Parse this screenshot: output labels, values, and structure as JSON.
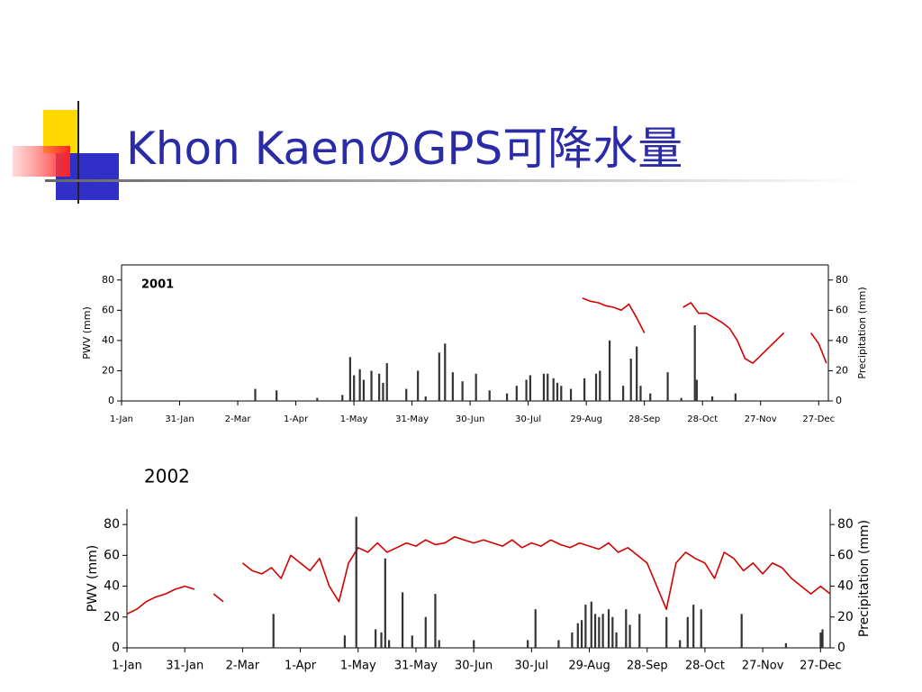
{
  "title": "Khon KaenのGPS可降水量",
  "chart_data": [
    {
      "type": "line",
      "title": "2001",
      "y_label": "PWV (mm)",
      "y2_label": "Precipitation (mm)",
      "xlim": [
        1,
        366
      ],
      "ylim": [
        0,
        90
      ],
      "y2lim": [
        0,
        90
      ],
      "xticks": [
        {
          "value": 1,
          "label": "1-Jan"
        },
        {
          "value": 31,
          "label": "31-Jan"
        },
        {
          "value": 61,
          "label": "2-Mar"
        },
        {
          "value": 91,
          "label": "1-Apr"
        },
        {
          "value": 121,
          "label": "1-May"
        },
        {
          "value": 151,
          "label": "31-May"
        },
        {
          "value": 181,
          "label": "30-Jun"
        },
        {
          "value": 211,
          "label": "30-Jul"
        },
        {
          "value": 241,
          "label": "29-Aug"
        },
        {
          "value": 271,
          "label": "28-Sep"
        },
        {
          "value": 301,
          "label": "28-Oct"
        },
        {
          "value": 331,
          "label": "27-Nov"
        },
        {
          "value": 361,
          "label": "27-Dec"
        }
      ],
      "yticks": [
        0,
        20,
        40,
        60,
        80
      ],
      "y2ticks": [
        0,
        20,
        40,
        60,
        80
      ],
      "series": [
        {
          "type": "line",
          "color": "#d40000",
          "x": [
            239,
            243,
            247,
            251,
            255,
            259,
            263,
            267,
            271,
            275,
            291,
            295,
            299,
            303,
            307,
            311,
            315,
            319,
            323,
            327,
            331,
            335,
            339,
            343,
            347,
            357,
            361,
            365
          ],
          "values": [
            68,
            66,
            65,
            63,
            62,
            60,
            64,
            55,
            45,
            null,
            62,
            65,
            58,
            58,
            55,
            52,
            48,
            40,
            28,
            25,
            30,
            35,
            40,
            45,
            null,
            45,
            38,
            25
          ]
        },
        {
          "type": "bar",
          "axis": "y2",
          "color": "#333333",
          "x": [
            70,
            81,
            102,
            115,
            119,
            121,
            124,
            126,
            130,
            134,
            136,
            138,
            148,
            154,
            158,
            165,
            168,
            172,
            177,
            184,
            191,
            200,
            205,
            210,
            212,
            219,
            221,
            224,
            226,
            228,
            233,
            240,
            246,
            248,
            253,
            260,
            264,
            267,
            269,
            274,
            283,
            290,
            297,
            298,
            306,
            318
          ],
          "values": [
            8,
            7,
            2,
            4,
            29,
            17,
            21,
            14,
            20,
            18,
            12,
            25,
            8,
            20,
            3,
            32,
            38,
            19,
            13,
            18,
            7,
            5,
            10,
            14,
            17,
            18,
            18,
            15,
            12,
            10,
            8,
            15,
            18,
            20,
            40,
            10,
            28,
            36,
            10,
            5,
            19,
            2,
            50,
            14,
            3,
            5
          ]
        }
      ]
    },
    {
      "type": "line",
      "title": "2002",
      "y_label": "PWV (mm)",
      "y2_label": "Precipitation (mm)",
      "xlim": [
        1,
        366
      ],
      "ylim": [
        0,
        90
      ],
      "y2lim": [
        0,
        90
      ],
      "xticks": [
        {
          "value": 1,
          "label": "1-Jan"
        },
        {
          "value": 31,
          "label": "31-Jan"
        },
        {
          "value": 61,
          "label": "2-Mar"
        },
        {
          "value": 91,
          "label": "1-Apr"
        },
        {
          "value": 121,
          "label": "1-May"
        },
        {
          "value": 151,
          "label": "31-May"
        },
        {
          "value": 181,
          "label": "30-Jun"
        },
        {
          "value": 211,
          "label": "30-Jul"
        },
        {
          "value": 241,
          "label": "29-Aug"
        },
        {
          "value": 271,
          "label": "28-Sep"
        },
        {
          "value": 301,
          "label": "28-Oct"
        },
        {
          "value": 331,
          "label": "27-Nov"
        },
        {
          "value": 361,
          "label": "27-Dec"
        }
      ],
      "yticks": [
        0,
        20,
        40,
        60,
        80
      ],
      "y2ticks": [
        0,
        20,
        40,
        60,
        80
      ],
      "series": [
        {
          "type": "line",
          "color": "#d40000",
          "x": [
            1,
            6,
            11,
            16,
            21,
            26,
            31,
            36,
            41,
            46,
            51,
            56,
            61,
            66,
            71,
            76,
            81,
            86,
            91,
            96,
            101,
            106,
            111,
            116,
            121,
            126,
            131,
            136,
            141,
            146,
            151,
            156,
            161,
            166,
            171,
            176,
            181,
            186,
            191,
            196,
            201,
            206,
            211,
            216,
            221,
            226,
            231,
            236,
            241,
            246,
            251,
            256,
            261,
            266,
            271,
            276,
            281,
            286,
            291,
            296,
            301,
            306,
            311,
            316,
            321,
            326,
            331,
            336,
            341,
            346,
            351,
            356,
            361,
            366
          ],
          "values": [
            22,
            25,
            30,
            33,
            35,
            38,
            40,
            38,
            null,
            35,
            30,
            null,
            55,
            50,
            48,
            52,
            45,
            60,
            55,
            50,
            58,
            40,
            30,
            55,
            65,
            62,
            68,
            62,
            65,
            68,
            66,
            70,
            67,
            68,
            72,
            70,
            68,
            70,
            68,
            66,
            70,
            65,
            68,
            66,
            70,
            67,
            65,
            68,
            66,
            64,
            68,
            62,
            65,
            60,
            55,
            40,
            25,
            55,
            62,
            58,
            55,
            45,
            62,
            58,
            50,
            55,
            48,
            55,
            52,
            45,
            40,
            35,
            40,
            35
          ]
        },
        {
          "type": "bar",
          "axis": "y2",
          "color": "#333333",
          "x": [
            77,
            114,
            120,
            130,
            133,
            135,
            137,
            144,
            149,
            156,
            161,
            163,
            181,
            209,
            213,
            225,
            232,
            235,
            237,
            239,
            242,
            244,
            246,
            248,
            251,
            253,
            255,
            260,
            262,
            267,
            281,
            288,
            292,
            295,
            299,
            320,
            343,
            361,
            362
          ],
          "values": [
            22,
            8,
            85,
            12,
            10,
            58,
            5,
            36,
            8,
            20,
            35,
            5,
            5,
            5,
            25,
            5,
            10,
            16,
            18,
            28,
            30,
            22,
            20,
            22,
            25,
            20,
            10,
            25,
            15,
            22,
            20,
            5,
            20,
            28,
            25,
            22,
            3,
            10,
            12
          ]
        }
      ]
    }
  ]
}
